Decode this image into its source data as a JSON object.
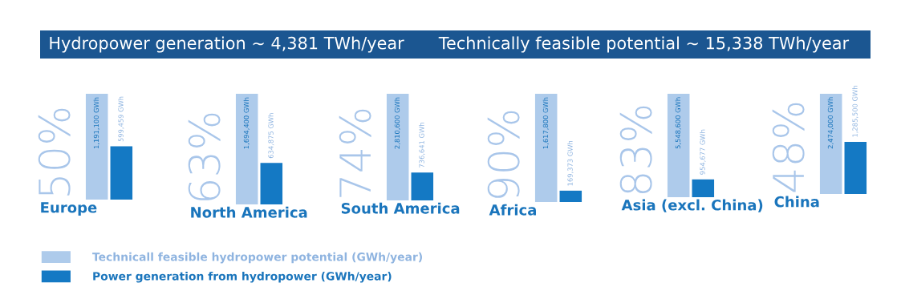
{
  "chart_data": [
    {
      "type": "other",
      "annotations": [
        "Hydropower generation ~ 4,381 TWh/year",
        "Technically feasible potential ~ 15,338 TWh/year"
      ],
      "color": "#1b5691"
    },
    {
      "type": "bar",
      "xlabel": "Europe",
      "categories": [
        null
      ],
      "annotations": [
        "50%"
      ],
      "tick_labels": false,
      "legend": "bottom",
      "series": [
        {
          "name": "Technicall feasible hydropower potential (GWh/year)",
          "color": "#aecbeb",
          "values": [
            1191100
          ],
          "value_labels": [
            "1,191,100 GWh"
          ]
        },
        {
          "name": "Power generation from hydropower (GWh/year)",
          "color": "#1479c4",
          "values": [
            599459
          ],
          "value_labels": [
            "599,459 GWh"
          ]
        }
      ]
    },
    {
      "type": "bar",
      "xlabel": "North America",
      "categories": [
        null
      ],
      "annotations": [
        "63%"
      ],
      "tick_labels": false,
      "series": [
        {
          "color": "#aecbeb",
          "values": [
            1694400
          ],
          "value_labels": [
            "1,694,400 GWh"
          ]
        },
        {
          "color": "#1479c4",
          "values": [
            634875
          ],
          "value_labels": [
            "634,875 GWh"
          ]
        }
      ]
    },
    {
      "type": "bar",
      "xlabel": "South America",
      "categories": [
        null
      ],
      "annotations": [
        "74%"
      ],
      "tick_labels": false,
      "series": [
        {
          "color": "#aecbeb",
          "values": [
            2810600
          ],
          "value_labels": [
            "2,810,600 GWh"
          ]
        },
        {
          "color": "#1479c4",
          "values": [
            736641
          ],
          "value_labels": [
            "736,641 GWh"
          ]
        }
      ]
    },
    {
      "type": "bar",
      "xlabel": "Africa",
      "categories": [
        null
      ],
      "annotations": [
        "90%"
      ],
      "tick_labels": false,
      "series": [
        {
          "color": "#aecbeb",
          "values": [
            1617800
          ],
          "value_labels": [
            "1,617,800 GWh"
          ]
        },
        {
          "color": "#1479c4",
          "values": [
            169373
          ],
          "value_labels": [
            "169,373 GWh"
          ]
        }
      ]
    },
    {
      "type": "bar",
      "xlabel": "Asia (excl. China)",
      "categories": [
        null
      ],
      "annotations": [
        "83%"
      ],
      "tick_labels": false,
      "series": [
        {
          "color": "#aecbeb",
          "values": [
            5548600
          ],
          "value_labels": [
            "5,548,600 GWh"
          ]
        },
        {
          "color": "#1479c4",
          "values": [
            954677
          ],
          "value_labels": [
            "954,677 GWh"
          ]
        }
      ]
    },
    {
      "type": "bar",
      "xlabel": "China",
      "categories": [
        null
      ],
      "annotations": [
        "48%"
      ],
      "tick_labels": false,
      "series": [
        {
          "color": "#aecbeb",
          "values": [
            2474000
          ],
          "value_labels": [
            "2,474,000 GWh"
          ]
        },
        {
          "color": "#1479c4",
          "values": [
            1285500
          ],
          "value_labels": [
            "1,285,500 GWh"
          ]
        }
      ]
    }
  ]
}
